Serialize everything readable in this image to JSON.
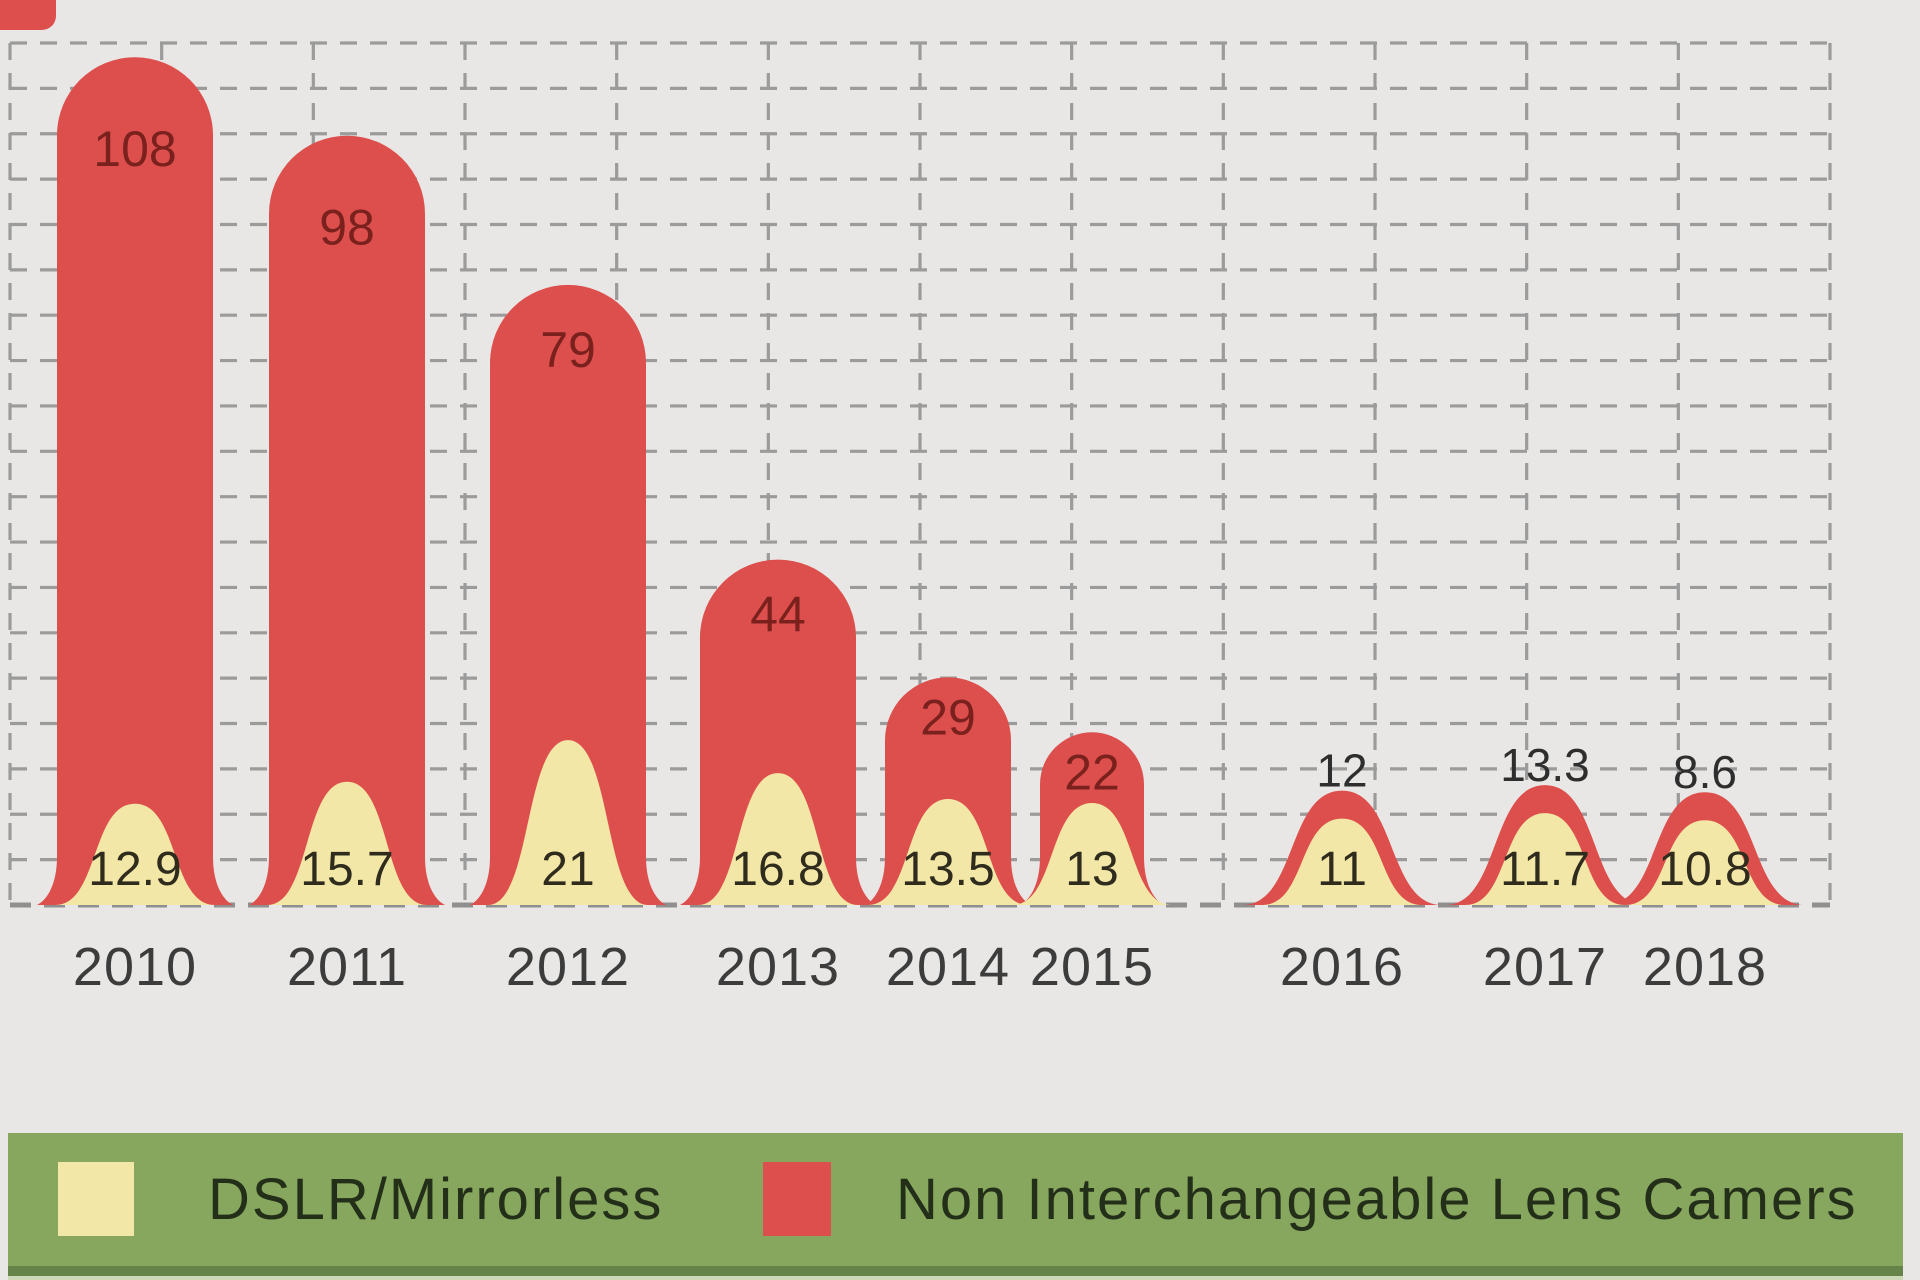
{
  "chart_data": {
    "type": "bar",
    "categories": [
      "2010",
      "2011",
      "2012",
      "2013",
      "2014",
      "2015",
      "2016",
      "2017",
      "2018"
    ],
    "series": [
      {
        "name": "DSLR/Mirrorless",
        "color": "#f2e7a6",
        "values": [
          12.9,
          15.7,
          21,
          16.8,
          13.5,
          13,
          11,
          11.7,
          10.8
        ]
      },
      {
        "name": "Non Interchangeable Lens Camers",
        "color": "#dd4f4d",
        "values": [
          108,
          98,
          79,
          44,
          29,
          22,
          12,
          13.3,
          8.6
        ]
      }
    ],
    "title": "",
    "xlabel": "",
    "ylabel": "",
    "ylim": [
      0,
      110
    ],
    "grid": "dashed",
    "legend_position": "bottom",
    "bar_style": "rounded-bell",
    "value_labels": "shown"
  },
  "legend": {
    "items": [
      {
        "label": "DSLR/Mirrorless",
        "color": "#f2e7a6"
      },
      {
        "label": "Non Interchangeable Lens Camers",
        "color": "#dd4f4d"
      }
    ]
  },
  "colors": {
    "background": "#e8e7e5",
    "red": "#dd4f4d",
    "yellow": "#f2e7a6",
    "red_value_label": "#7a211e",
    "small_value_label": "#2e2e2e",
    "yellow_value_label": "#2f2c1e",
    "year_label": "#3c3c3c",
    "grid": "#9b9b9b",
    "baseline": "#8f8f8f",
    "legend_bg": "#87a75e",
    "legend_text": "#242f19",
    "legend_strip_dark": "#66834a",
    "legend_strip_pale": "#ccd8b6"
  }
}
